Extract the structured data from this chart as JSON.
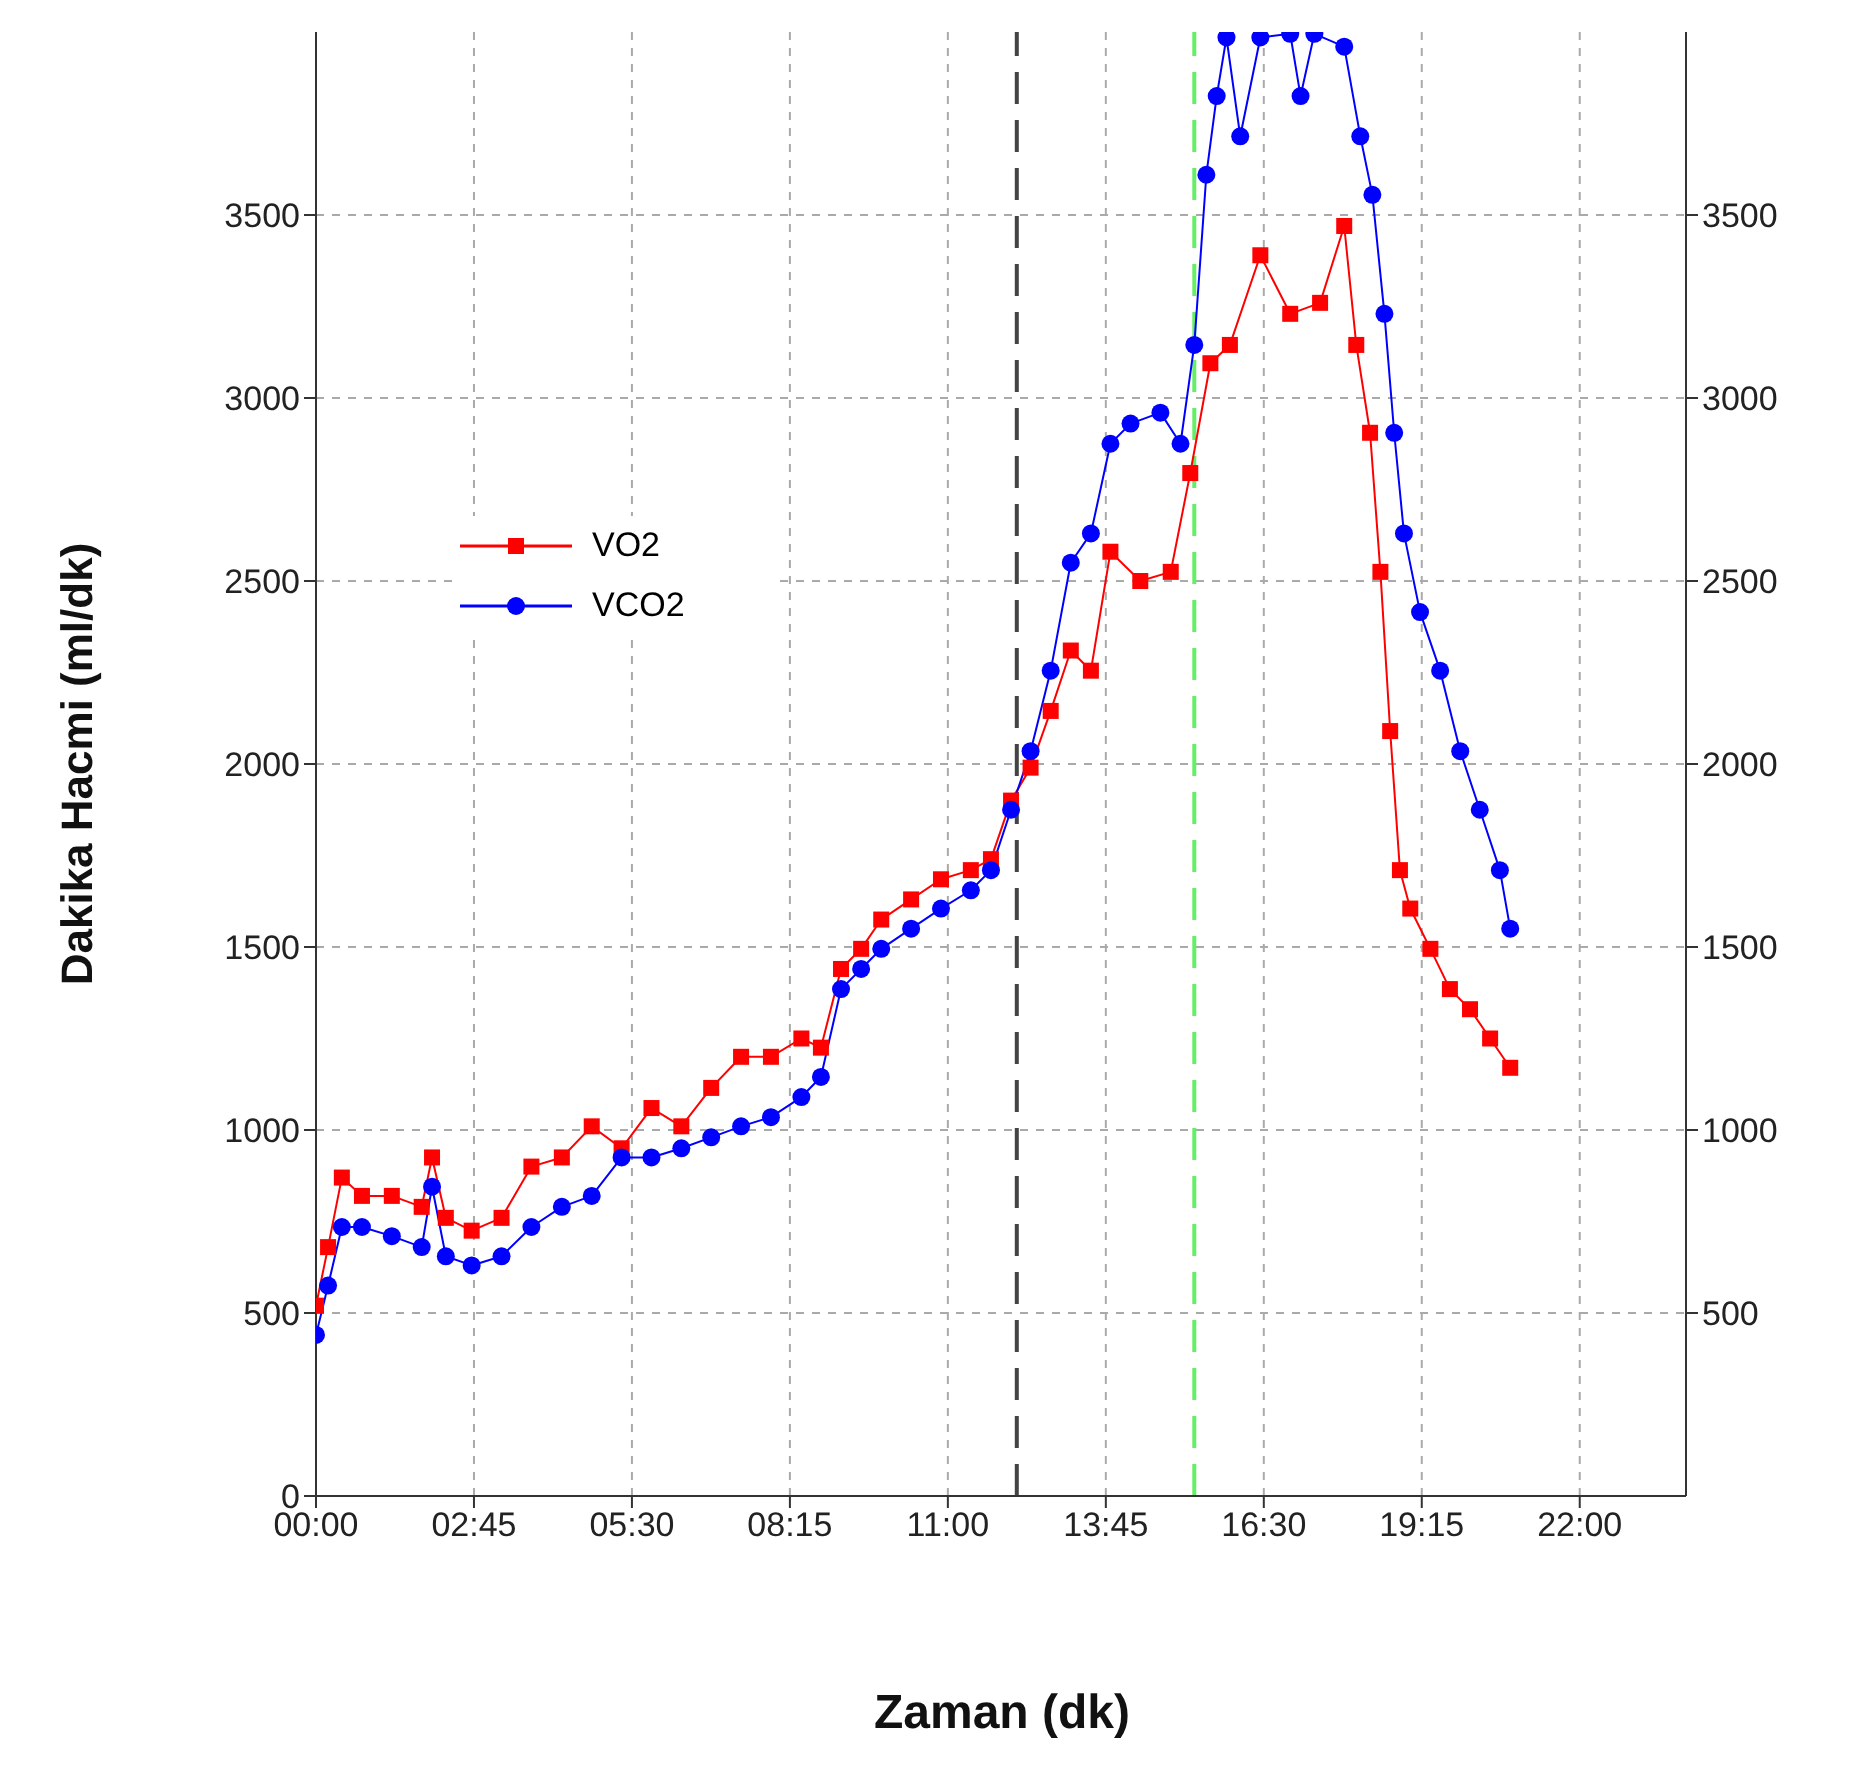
{
  "chart_data": {
    "type": "line",
    "xlabel": "Zaman (dk)",
    "ylabel": "Dakika Hacmi (ml/dk)",
    "xlim": [
      0,
      23.85
    ],
    "xticks": [
      {
        "value": 0,
        "label": "00:00"
      },
      {
        "value": 2.75,
        "label": "02:45"
      },
      {
        "value": 5.5,
        "label": "05:30"
      },
      {
        "value": 8.25,
        "label": "08:15"
      },
      {
        "value": 11,
        "label": "11:00"
      },
      {
        "value": 13.75,
        "label": "13:45"
      },
      {
        "value": 16.5,
        "label": "16:30"
      },
      {
        "value": 19.25,
        "label": "19:15"
      },
      {
        "value": 22,
        "label": "22:00"
      }
    ],
    "ylim": [
      0,
      4000
    ],
    "yticks": [
      0,
      500,
      1000,
      1500,
      2000,
      2500,
      3000,
      3500
    ],
    "y2lim": [
      0,
      4000
    ],
    "y2ticks": [
      500,
      1000,
      1500,
      2000,
      2500,
      3000,
      3500
    ],
    "grid": true,
    "legend": "left",
    "line_style": "solid",
    "ref_lines": [
      {
        "axis": "x",
        "value": 12.2,
        "color": "#444444",
        "line_style": "dashed"
      },
      {
        "axis": "x",
        "value": 15.29,
        "color": "#66ee66",
        "line_style": "dashed"
      }
    ],
    "series": [
      {
        "name": "VO2",
        "color": "#ff0000",
        "marker": "square",
        "x": [
          0,
          0.21,
          0.45,
          0.8,
          1.32,
          1.84,
          2.02,
          2.26,
          2.71,
          3.23,
          3.75,
          4.28,
          4.8,
          5.32,
          5.84,
          6.36,
          6.88,
          7.4,
          7.92,
          8.45,
          8.79,
          9.14,
          9.49,
          9.84,
          10.36,
          10.88,
          11.4,
          11.75,
          12.1,
          12.44,
          12.79,
          13.14,
          13.49,
          13.83,
          14.35,
          14.88,
          15.22,
          15.57,
          15.91,
          16.44,
          16.96,
          17.48,
          17.9,
          18.11,
          18.35,
          18.53,
          18.7,
          18.87,
          19.05,
          19.4,
          19.74,
          20.09,
          20.44,
          20.79
        ],
        "values": [
          520,
          680,
          870,
          820,
          820,
          790,
          925,
          760,
          725,
          760,
          900,
          925,
          1010,
          950,
          1060,
          1010,
          1115,
          1200,
          1200,
          1250,
          1225,
          1440,
          1495,
          1575,
          1630,
          1685,
          1710,
          1740,
          1900,
          1990,
          2145,
          2310,
          2255,
          2580,
          2500,
          2525,
          2795,
          3095,
          3145,
          3390,
          3230,
          3260,
          3470,
          3145,
          2905,
          2525,
          2090,
          1710,
          1605,
          1495,
          1385,
          1330,
          1250,
          1170
        ]
      },
      {
        "name": "VCO2",
        "color": "#0000ff",
        "marker": "circle",
        "x": [
          0,
          0.21,
          0.45,
          0.8,
          1.32,
          1.84,
          2.02,
          2.26,
          2.71,
          3.23,
          3.75,
          4.28,
          4.8,
          5.32,
          5.84,
          6.36,
          6.88,
          7.4,
          7.92,
          8.45,
          8.79,
          9.14,
          9.49,
          9.84,
          10.36,
          10.88,
          11.4,
          11.75,
          12.1,
          12.44,
          12.79,
          13.14,
          13.49,
          13.83,
          14.18,
          14.7,
          15.05,
          15.29,
          15.5,
          15.68,
          15.85,
          16.09,
          16.44,
          16.96,
          17.14,
          17.38,
          17.9,
          18.18,
          18.39,
          18.6,
          18.77,
          18.94,
          19.22,
          19.57,
          19.92,
          20.26,
          20.61,
          20.79
        ],
        "values": [
          440,
          575,
          735,
          735,
          710,
          680,
          845,
          655,
          630,
          655,
          735,
          790,
          820,
          925,
          925,
          950,
          980,
          1010,
          1035,
          1090,
          1145,
          1385,
          1440,
          1495,
          1550,
          1605,
          1655,
          1710,
          1875,
          2035,
          2255,
          2550,
          2630,
          2875,
          2930,
          2960,
          2875,
          3145,
          3610,
          3825,
          3985,
          3715,
          3985,
          3995,
          3825,
          3995,
          3960,
          3715,
          3555,
          3230,
          2905,
          2630,
          2415,
          2255,
          2035,
          1875,
          1710,
          1550
        ]
      }
    ]
  }
}
